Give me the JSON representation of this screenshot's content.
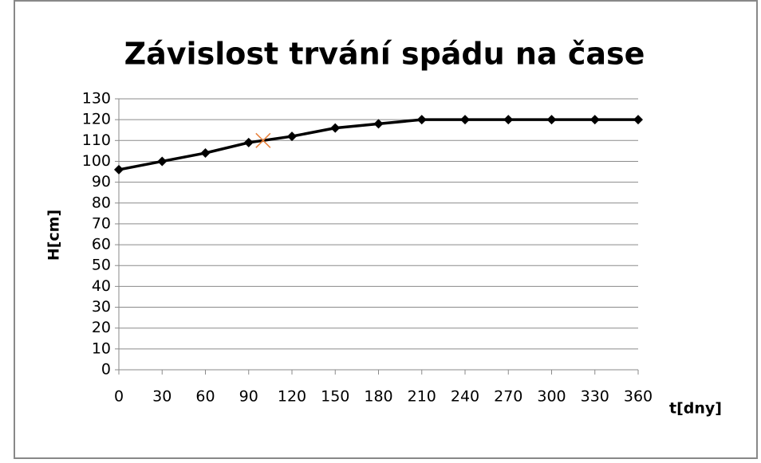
{
  "chart_data": {
    "type": "line",
    "title": "Závislost trvání spádu na čase",
    "x_label": "t[dny]",
    "y_label": "H[cm]",
    "series": [
      {
        "color": "#000000",
        "marker": "diamond",
        "x": [
          0,
          30,
          60,
          90,
          120,
          150,
          180,
          210,
          240,
          270,
          300,
          330,
          360
        ],
        "values": [
          96,
          100,
          104,
          109,
          112,
          116,
          118,
          120,
          120,
          120,
          120,
          120,
          120
        ]
      },
      {
        "color": "#e8803a",
        "marker": "x",
        "x": [
          100
        ],
        "values": [
          110
        ]
      }
    ],
    "xlim": [
      0,
      360
    ],
    "xticks": [
      0,
      30,
      60,
      90,
      120,
      150,
      180,
      210,
      240,
      270,
      300,
      330,
      360
    ],
    "ylim": [
      0,
      130
    ],
    "yticks": [
      0,
      10,
      20,
      30,
      40,
      50,
      60,
      70,
      80,
      90,
      100,
      110,
      120,
      130
    ],
    "grid": true
  }
}
